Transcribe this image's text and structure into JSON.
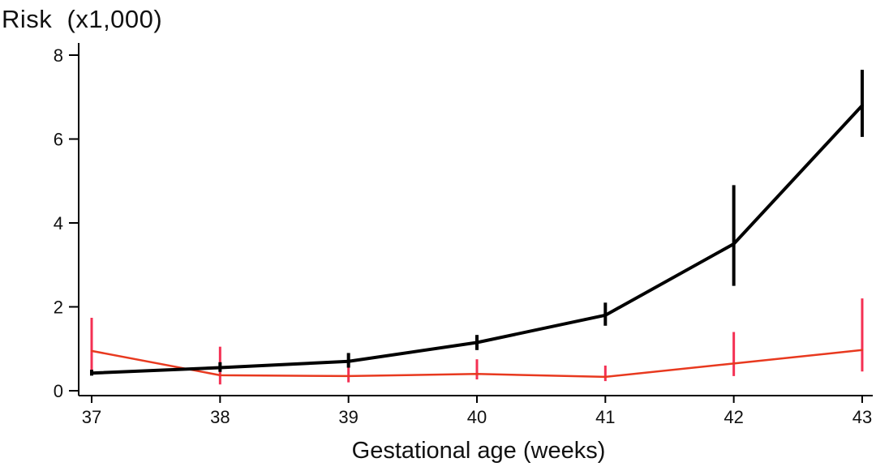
{
  "page": {
    "background": "#ffffff"
  },
  "chart_data": {
    "type": "line",
    "title": "Risk  (x1,000)",
    "xlabel": "Gestational age (weeks)",
    "ylabel": "",
    "grid": false,
    "legend": {
      "visible": false
    },
    "axis_color": "#000000",
    "x": [
      37,
      38,
      39,
      40,
      41,
      42,
      43
    ],
    "x_ticks": [
      "37",
      "38",
      "39",
      "40",
      "41",
      "42",
      "43"
    ],
    "y_ticks": [
      "0",
      "2",
      "4",
      "6",
      "8"
    ],
    "xlim": [
      36.85,
      43.15
    ],
    "ylim": [
      0,
      8
    ],
    "series": [
      {
        "name": "black",
        "color": "#000000",
        "spike_color": "#000000",
        "line_width": 4,
        "spike_width": 4,
        "values": [
          0.42,
          0.55,
          0.7,
          1.15,
          1.8,
          3.5,
          6.8
        ],
        "ci_low": [
          0.36,
          0.45,
          0.55,
          0.97,
          1.55,
          2.5,
          6.05
        ],
        "ci_high": [
          0.5,
          0.68,
          0.9,
          1.33,
          2.1,
          4.9,
          7.65
        ]
      },
      {
        "name": "red",
        "color": "#e8391f",
        "spike_color": "#f43053",
        "line_width": 2.5,
        "spike_width": 3,
        "values": [
          0.95,
          0.37,
          0.35,
          0.4,
          0.33,
          0.65,
          0.97
        ],
        "ci_low": [
          0.48,
          0.15,
          0.2,
          0.27,
          0.23,
          0.35,
          0.46
        ],
        "ci_high": [
          1.74,
          1.05,
          0.65,
          0.75,
          0.6,
          1.4,
          2.2
        ]
      }
    ]
  }
}
